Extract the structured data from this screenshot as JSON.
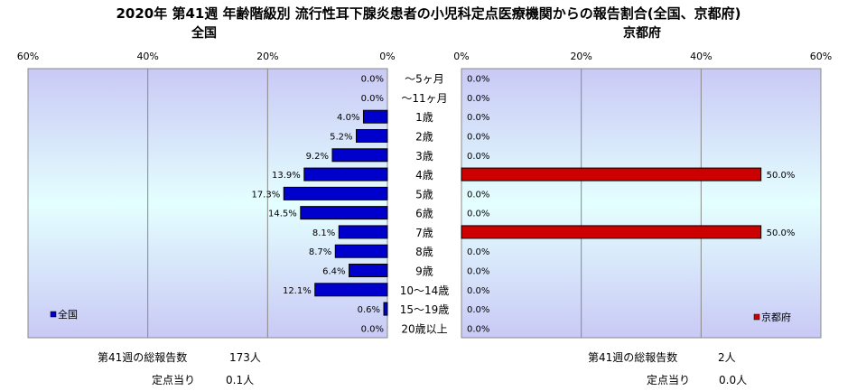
{
  "title": "2020年 第41週 年齢階級別 流行性耳下腺炎患者の小児科定点医療機関からの報告割合(全国、京都府)",
  "panels": {
    "left_title": "全国",
    "right_title": "京都府"
  },
  "summary": {
    "left": {
      "total_label": "第41週の総報告数",
      "total_value": "173人",
      "per_label": "定点当り",
      "per_value": "0.1人"
    },
    "right": {
      "total_label": "第41週の総報告数",
      "total_value": "2人",
      "per_label": "定点当り",
      "per_value": "0.0人"
    }
  },
  "colors": {
    "national": "#0000cc",
    "kyoto": "#cc0000",
    "bg_top": "#c9c9f5",
    "bg_mid": "#e4ffff"
  },
  "chart_data": {
    "type": "bar",
    "orientation": "horizontal-butterfly",
    "categories": [
      "～5ヶ月",
      "～11ヶ月",
      "1歳",
      "2歳",
      "3歳",
      "4歳",
      "5歳",
      "6歳",
      "7歳",
      "8歳",
      "9歳",
      "10～14歳",
      "15～19歳",
      "20歳以上"
    ],
    "xlim": [
      0,
      60
    ],
    "x_ticks": [
      "60%",
      "40%",
      "20%",
      "0%"
    ],
    "x_ticks_right": [
      "0%",
      "20%",
      "40%",
      "60%"
    ],
    "grid": true,
    "series": [
      {
        "name": "全国",
        "side": "left",
        "legend_position": "bottom-left",
        "values": [
          0.0,
          0.0,
          4.0,
          5.2,
          9.2,
          13.9,
          17.3,
          14.5,
          8.1,
          8.7,
          6.4,
          12.1,
          0.6,
          0.0
        ],
        "labels": [
          "0.0%",
          "0.0%",
          "4.0%",
          "5.2%",
          "9.2%",
          "13.9%",
          "17.3%",
          "14.5%",
          "8.1%",
          "8.7%",
          "6.4%",
          "12.1%",
          "0.6%",
          "0.0%"
        ]
      },
      {
        "name": "京都府",
        "side": "right",
        "legend_position": "bottom-right",
        "values": [
          0.0,
          0.0,
          0.0,
          0.0,
          0.0,
          50.0,
          0.0,
          0.0,
          50.0,
          0.0,
          0.0,
          0.0,
          0.0,
          0.0
        ],
        "labels": [
          "0.0%",
          "0.0%",
          "0.0%",
          "0.0%",
          "0.0%",
          "50.0%",
          "0.0%",
          "0.0%",
          "50.0%",
          "0.0%",
          "0.0%",
          "0.0%",
          "0.0%",
          "0.0%"
        ]
      }
    ]
  }
}
